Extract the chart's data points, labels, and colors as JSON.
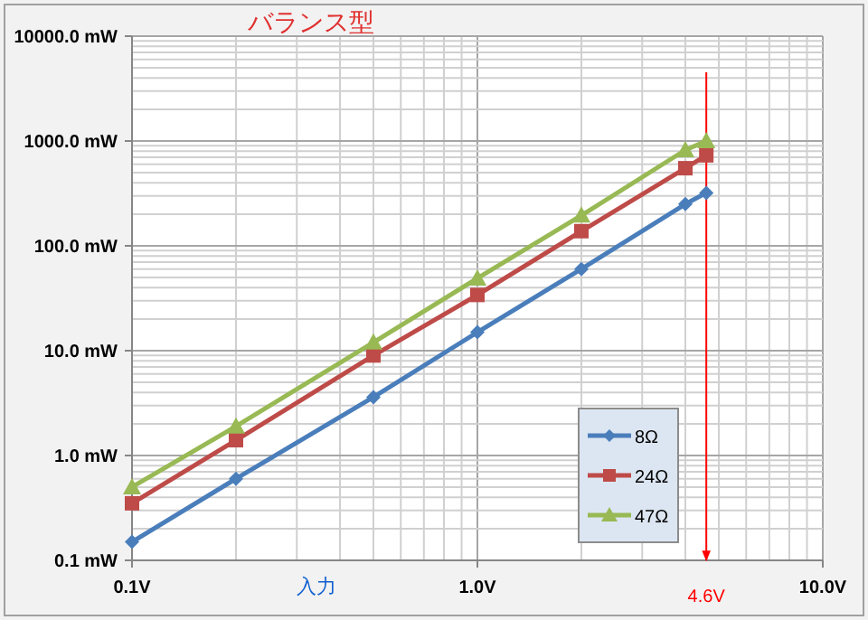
{
  "chart_data": {
    "type": "line",
    "title": "バランス型",
    "xlabel": "入力",
    "x": [
      0.1,
      0.2,
      0.5,
      1,
      2,
      4,
      4.6
    ],
    "series": [
      {
        "name": "8Ω",
        "color": "#4a7ebb",
        "marker": "diamond",
        "values": [
          0.15,
          0.6,
          3.6,
          15,
          60,
          250,
          320
        ]
      },
      {
        "name": "24Ω",
        "color": "#be4b48",
        "marker": "square",
        "values": [
          0.35,
          1.4,
          9,
          34,
          138,
          550,
          730
        ]
      },
      {
        "name": "47Ω",
        "color": "#98b954",
        "marker": "triangle",
        "values": [
          0.5,
          1.9,
          12,
          49,
          195,
          820,
          1000
        ]
      }
    ],
    "log": "xy",
    "xlim": [
      0.1,
      10
    ],
    "ylim": [
      0.1,
      10000
    ],
    "xticks": [
      {
        "value": 0.1,
        "label": "0.1V"
      },
      {
        "value": 1,
        "label": "1.0V"
      },
      {
        "value": 10,
        "label": "10.0V"
      }
    ],
    "yticks": [
      {
        "value": 0.1,
        "label": "0.1 mW"
      },
      {
        "value": 1,
        "label": "1.0 mW"
      },
      {
        "value": 10,
        "label": "10.0 mW"
      },
      {
        "value": 100,
        "label": "100.0 mW"
      },
      {
        "value": 1000,
        "label": "1000.0 mW"
      },
      {
        "value": 10000,
        "label": "10000.0 mW"
      }
    ],
    "ref_lines": [
      {
        "axis": "x",
        "value": 4.6,
        "label": "4.6V",
        "color": "#ff0000"
      }
    ],
    "grid": true,
    "legend": "right",
    "line_style": "solid"
  }
}
